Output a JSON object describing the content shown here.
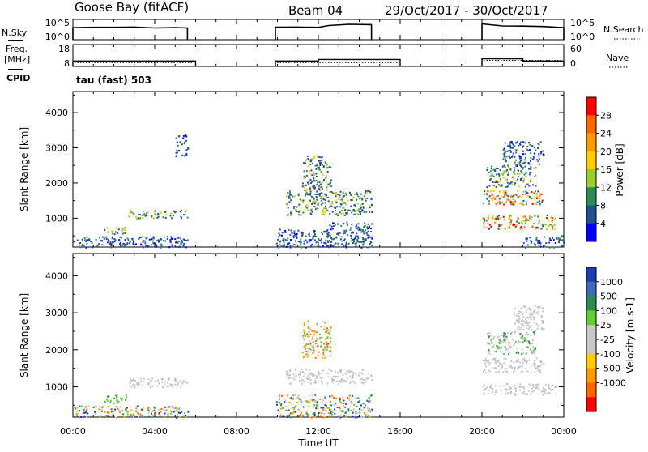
{
  "header": {
    "station": "Goose Bay (fitACF)",
    "beam": "Beam 04",
    "dates": "29/Oct/2017 - 30/Oct/2017"
  },
  "left_labels": {
    "nsky": "N.Sky",
    "freq": "Freq.",
    "freq_unit": "[MHz]",
    "cpid": "CPID"
  },
  "right_labels": {
    "nsearch": "N.Search",
    "nave": "Nave"
  },
  "cpid_text": "tau (fast) 503",
  "status_ticks": {
    "noise_left": [
      "10^5",
      "10^0"
    ],
    "noise_right": [
      "10^5",
      "10^0"
    ],
    "freq_left": [
      "18",
      "8"
    ],
    "freq_right": [
      "60",
      "0"
    ]
  },
  "colors": {
    "scatter_blue": "#2a4fb0",
    "ground_gray": "#bfbfbf",
    "line": "#000000"
  },
  "chart_data": [
    {
      "type": "heatmap",
      "panel": "power",
      "ylabel": "Slant Range [km]",
      "xlabel": "",
      "ylim": [
        180,
        4600
      ],
      "yticks": [
        "4000",
        "3000",
        "2000",
        "1000"
      ],
      "xlim": [
        0,
        24
      ],
      "colorbar_label": "Power [dB]",
      "colorbar_ticks": [
        "28",
        "24",
        "20",
        "16",
        "12",
        "8",
        "4"
      ],
      "colorbar_colors": [
        "#ff0000",
        "#ff6600",
        "#ff9900",
        "#ffcc00",
        "#9acd32",
        "#2e8b57",
        "#20508c",
        "#0000ff"
      ],
      "regions": [
        {
          "t0": 0.0,
          "t1": 5.6,
          "r0": 180,
          "r1": 500,
          "level": "low"
        },
        {
          "t0": 1.5,
          "t1": 2.6,
          "r0": 560,
          "r1": 800,
          "level": "mid"
        },
        {
          "t0": 2.7,
          "t1": 5.6,
          "r0": 1000,
          "r1": 1250,
          "level": "mid"
        },
        {
          "t0": 5.0,
          "t1": 5.6,
          "r0": 2700,
          "r1": 3400,
          "level": "low"
        },
        {
          "t0": 9.9,
          "t1": 12.6,
          "r0": 180,
          "r1": 700,
          "level": "low"
        },
        {
          "t0": 10.4,
          "t1": 14.6,
          "r0": 1100,
          "r1": 1800,
          "level": "mid"
        },
        {
          "t0": 11.2,
          "t1": 12.6,
          "r0": 1800,
          "r1": 2800,
          "level": "mid"
        },
        {
          "t0": 12.4,
          "t1": 14.6,
          "r0": 180,
          "r1": 900,
          "level": "low"
        },
        {
          "t0": 20.0,
          "t1": 23.6,
          "r0": 700,
          "r1": 1100,
          "level": "high"
        },
        {
          "t0": 20.0,
          "t1": 23.0,
          "r0": 1400,
          "r1": 1800,
          "level": "high"
        },
        {
          "t0": 20.2,
          "t1": 22.6,
          "r0": 1900,
          "r1": 2500,
          "level": "mid"
        },
        {
          "t0": 21.0,
          "t1": 23.0,
          "r0": 2500,
          "r1": 3200,
          "level": "low"
        },
        {
          "t0": 22.0,
          "t1": 24.0,
          "r0": 180,
          "r1": 500,
          "level": "low"
        }
      ]
    },
    {
      "type": "heatmap",
      "panel": "velocity",
      "ylabel": "Slant Range [km]",
      "xlabel": "Time UT",
      "ylim": [
        180,
        4600
      ],
      "yticks": [
        "4000",
        "3000",
        "2000",
        "1000"
      ],
      "xlim": [
        0,
        24
      ],
      "xticks": [
        "00:00",
        "04:00",
        "08:00",
        "12:00",
        "16:00",
        "20:00",
        "00:00"
      ],
      "colorbar_label": "Velocity [m s-1]",
      "colorbar_ticks": [
        "1000",
        "500",
        "100",
        "25",
        "-25",
        "-100",
        "-500",
        "-1000"
      ],
      "colorbar_colors": [
        "#1e3cb4",
        "#3c6ab4",
        "#2e8b57",
        "#66cc33",
        "#c8c8c8",
        "#c8c8c8",
        "#ffcc00",
        "#ff9900",
        "#ff6600",
        "#ff0000"
      ],
      "regions": [
        {
          "t0": 0.0,
          "t1": 5.6,
          "r0": 180,
          "r1": 500,
          "level": "mixed"
        },
        {
          "t0": 1.5,
          "t1": 2.6,
          "r0": 560,
          "r1": 800,
          "level": "green"
        },
        {
          "t0": 2.7,
          "t1": 5.6,
          "r0": 1000,
          "r1": 1250,
          "level": "gray"
        },
        {
          "t0": 9.9,
          "t1": 14.6,
          "r0": 180,
          "r1": 800,
          "level": "mixed"
        },
        {
          "t0": 10.4,
          "t1": 14.6,
          "r0": 1100,
          "r1": 1500,
          "level": "gray"
        },
        {
          "t0": 11.2,
          "t1": 12.6,
          "r0": 1800,
          "r1": 2800,
          "level": "orange"
        },
        {
          "t0": 20.0,
          "t1": 23.6,
          "r0": 800,
          "r1": 1100,
          "level": "gray"
        },
        {
          "t0": 20.0,
          "t1": 23.0,
          "r0": 1400,
          "r1": 1800,
          "level": "gray"
        },
        {
          "t0": 20.2,
          "t1": 22.6,
          "r0": 1900,
          "r1": 2500,
          "level": "greengray"
        },
        {
          "t0": 21.5,
          "t1": 23.0,
          "r0": 2500,
          "r1": 3200,
          "level": "gray"
        }
      ]
    },
    {
      "type": "line",
      "panel": "noise",
      "series": [
        {
          "name": "N.Sky",
          "x": [
            0.0,
            1.0,
            2.0,
            3.0,
            4.0,
            5.0,
            5.6
          ],
          "values": [
            3.0,
            3.1,
            3.0,
            3.0,
            3.05,
            3.0,
            3.0
          ]
        },
        {
          "name": "N.Sky",
          "x": [
            9.9,
            11.0,
            12.0,
            12.5,
            13.5,
            14.6
          ],
          "values": [
            3.0,
            3.1,
            3.0,
            3.6,
            3.7,
            3.6
          ]
        },
        {
          "name": "N.Sky",
          "x": [
            20.0,
            21.0,
            22.0,
            23.0,
            24.0
          ],
          "values": [
            3.8,
            3.4,
            3.3,
            3.2,
            3.0
          ]
        }
      ]
    },
    {
      "type": "line",
      "panel": "frequency",
      "series": [
        {
          "name": "Freq.",
          "x": [
            0.0,
            6.0
          ],
          "values": [
            10.5,
            10.5
          ]
        },
        {
          "name": "Freq.",
          "x": [
            9.9,
            12.0,
            16.0
          ],
          "values": [
            10.5,
            11.2,
            11.2
          ]
        },
        {
          "name": "Freq.",
          "x": [
            20.0,
            22.0,
            24.0
          ],
          "values": [
            11.5,
            10.5,
            10.5
          ]
        }
      ]
    }
  ]
}
